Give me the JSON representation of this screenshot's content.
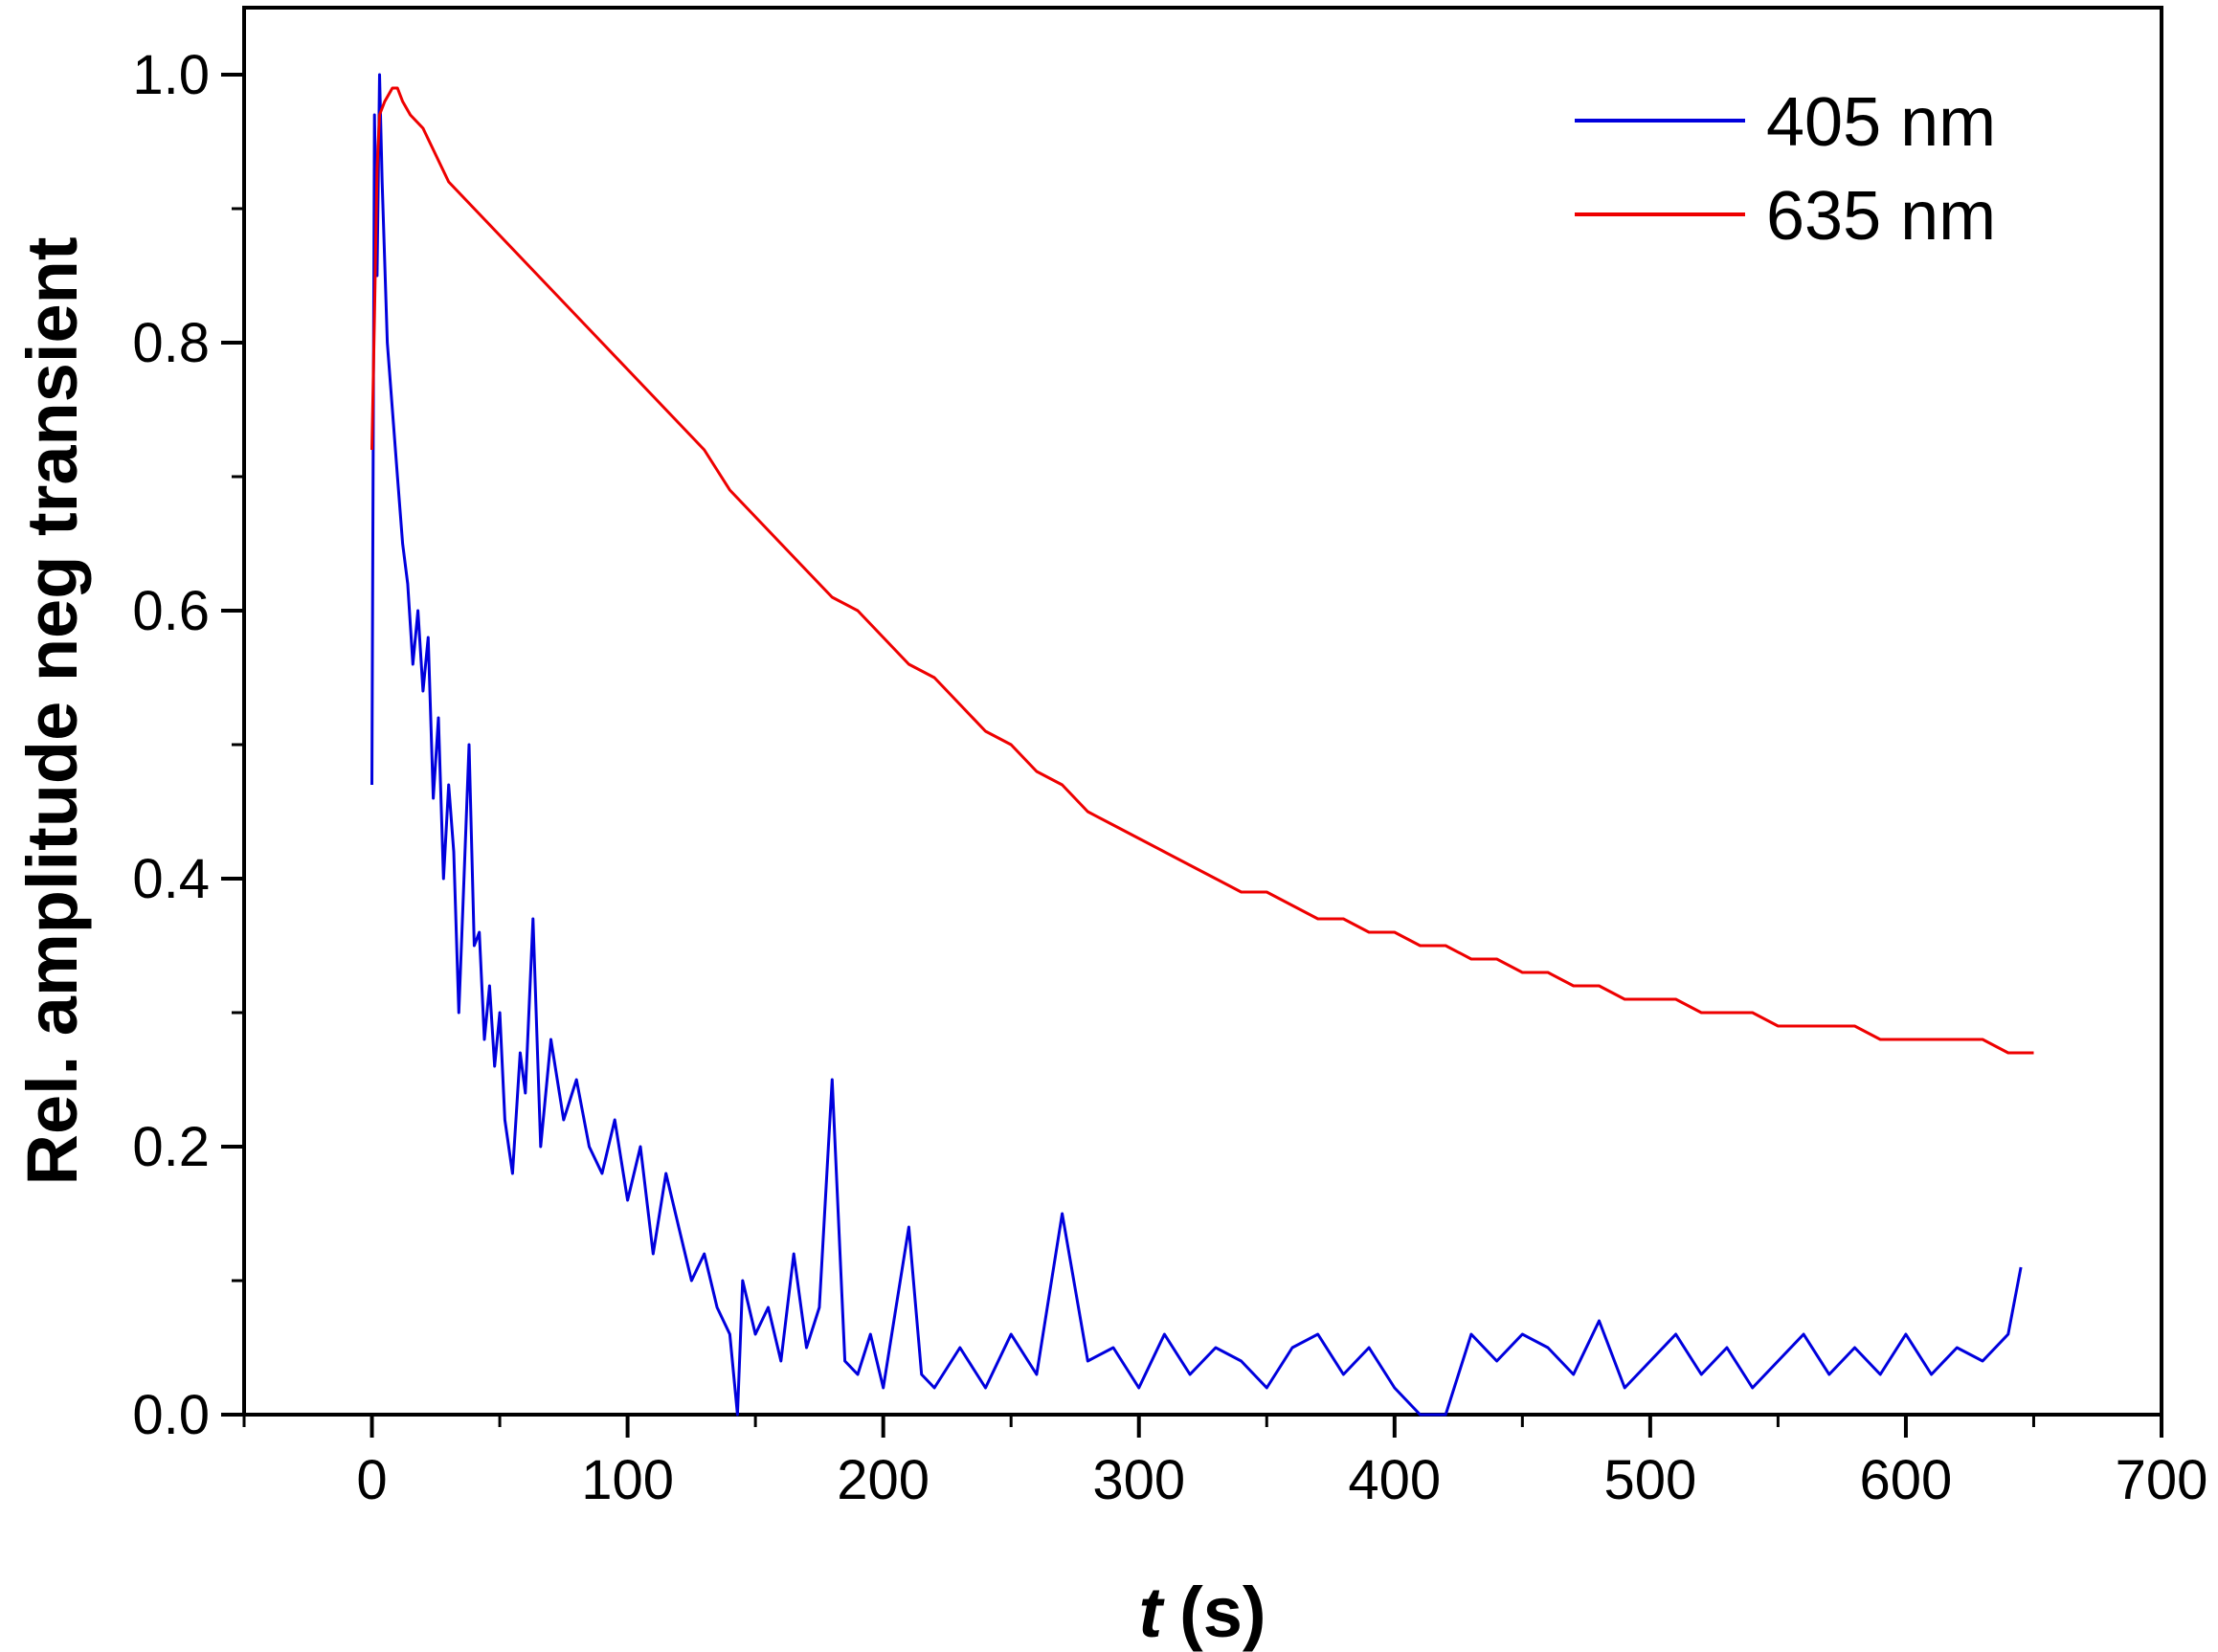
{
  "chart_data": {
    "type": "line",
    "xlabel_var": "t",
    "xlabel_unit": "(s)",
    "ylabel": "Rel. amplitude neg transient",
    "xlim": [
      -50,
      700
    ],
    "ylim": [
      0.0,
      1.05
    ],
    "x_ticks": [
      0,
      100,
      200,
      300,
      400,
      500,
      600,
      700
    ],
    "y_ticks": [
      0.0,
      0.2,
      0.4,
      0.6,
      0.8,
      1.0
    ],
    "x_tick_labels": [
      "0",
      "100",
      "200",
      "300",
      "400",
      "500",
      "600",
      "700"
    ],
    "y_tick_labels": [
      "0.0",
      "0.2",
      "0.4",
      "0.6",
      "0.8",
      "1.0"
    ],
    "x_minor_step": 50,
    "y_minor_step": 0.1,
    "grid": false,
    "legend_position": "top-right",
    "series": [
      {
        "name": "405 nm",
        "color": "#0000dd",
        "x": [
          0,
          1,
          2,
          3,
          4,
          5,
          6,
          8,
          10,
          12,
          14,
          16,
          18,
          20,
          22,
          24,
          26,
          28,
          30,
          32,
          34,
          36,
          38,
          40,
          42,
          44,
          46,
          48,
          50,
          52,
          55,
          58,
          60,
          63,
          66,
          70,
          75,
          80,
          85,
          90,
          95,
          100,
          105,
          110,
          115,
          120,
          125,
          130,
          135,
          140,
          143,
          145,
          150,
          155,
          160,
          165,
          170,
          175,
          180,
          185,
          190,
          195,
          200,
          205,
          210,
          215,
          220,
          230,
          240,
          250,
          260,
          270,
          280,
          290,
          300,
          310,
          320,
          330,
          340,
          350,
          360,
          370,
          380,
          390,
          400,
          410,
          420,
          430,
          440,
          450,
          460,
          470,
          480,
          490,
          500,
          510,
          520,
          530,
          540,
          550,
          560,
          570,
          580,
          590,
          600,
          610,
          620,
          630,
          640,
          645
        ],
        "y": [
          0.47,
          0.97,
          0.85,
          1.0,
          0.92,
          0.86,
          0.8,
          0.75,
          0.7,
          0.65,
          0.62,
          0.56,
          0.6,
          0.54,
          0.58,
          0.46,
          0.52,
          0.4,
          0.47,
          0.42,
          0.3,
          0.4,
          0.5,
          0.35,
          0.36,
          0.28,
          0.32,
          0.26,
          0.3,
          0.22,
          0.18,
          0.27,
          0.24,
          0.37,
          0.2,
          0.28,
          0.22,
          0.25,
          0.2,
          0.18,
          0.22,
          0.16,
          0.2,
          0.12,
          0.18,
          0.14,
          0.1,
          0.12,
          0.08,
          0.06,
          0.0,
          0.1,
          0.06,
          0.08,
          0.04,
          0.12,
          0.05,
          0.08,
          0.25,
          0.04,
          0.03,
          0.06,
          0.02,
          0.08,
          0.14,
          0.03,
          0.02,
          0.05,
          0.02,
          0.06,
          0.03,
          0.15,
          0.04,
          0.05,
          0.02,
          0.06,
          0.03,
          0.05,
          0.04,
          0.02,
          0.05,
          0.06,
          0.03,
          0.05,
          0.02,
          0.0,
          0.0,
          0.06,
          0.04,
          0.06,
          0.05,
          0.03,
          0.07,
          0.02,
          0.04,
          0.06,
          0.03,
          0.05,
          0.02,
          0.04,
          0.06,
          0.03,
          0.05,
          0.03,
          0.06,
          0.03,
          0.05,
          0.04,
          0.06,
          0.11
        ]
      },
      {
        "name": "635 nm",
        "color": "#ee0000",
        "x": [
          0,
          1,
          2,
          3,
          5,
          8,
          10,
          12,
          15,
          20,
          25,
          30,
          40,
          50,
          60,
          70,
          80,
          90,
          100,
          110,
          120,
          130,
          140,
          150,
          160,
          170,
          180,
          190,
          200,
          210,
          220,
          230,
          240,
          250,
          260,
          270,
          280,
          290,
          300,
          310,
          320,
          330,
          340,
          350,
          360,
          370,
          380,
          390,
          400,
          410,
          420,
          430,
          440,
          450,
          460,
          470,
          480,
          490,
          500,
          510,
          520,
          530,
          540,
          550,
          560,
          570,
          580,
          590,
          600,
          610,
          620,
          630,
          640,
          650
        ],
        "y": [
          0.72,
          0.82,
          0.93,
          0.97,
          0.98,
          0.99,
          0.99,
          0.98,
          0.97,
          0.96,
          0.94,
          0.92,
          0.9,
          0.88,
          0.86,
          0.84,
          0.82,
          0.8,
          0.78,
          0.76,
          0.74,
          0.72,
          0.69,
          0.67,
          0.65,
          0.63,
          0.61,
          0.6,
          0.58,
          0.56,
          0.55,
          0.53,
          0.51,
          0.5,
          0.48,
          0.47,
          0.45,
          0.44,
          0.43,
          0.42,
          0.41,
          0.4,
          0.39,
          0.39,
          0.38,
          0.37,
          0.37,
          0.36,
          0.36,
          0.35,
          0.35,
          0.34,
          0.34,
          0.33,
          0.33,
          0.32,
          0.32,
          0.31,
          0.31,
          0.31,
          0.3,
          0.3,
          0.3,
          0.29,
          0.29,
          0.29,
          0.29,
          0.28,
          0.28,
          0.28,
          0.28,
          0.28,
          0.27,
          0.27
        ]
      }
    ]
  }
}
